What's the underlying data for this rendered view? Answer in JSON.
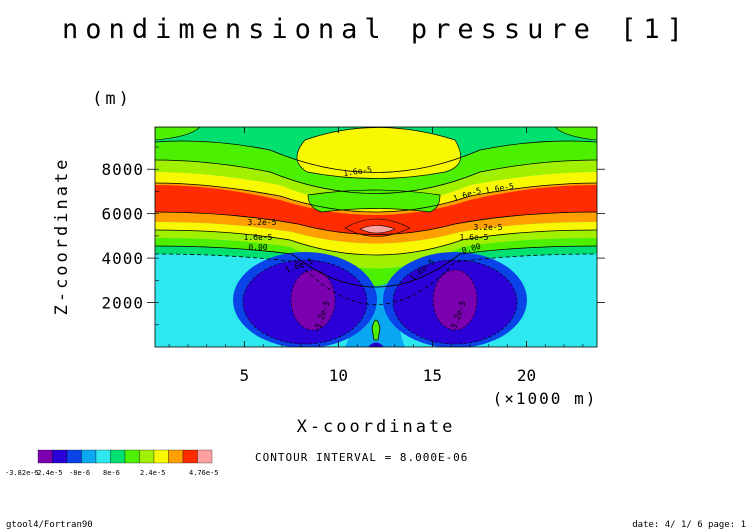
{
  "chart_data": {
    "type": "contour",
    "title": "nondimensional pressure [1]",
    "xlabel": "X-coordinate",
    "x_unit": "(×1000 m)",
    "ylabel": "Z-coordinate",
    "y_unit": "(m)",
    "xlim": [
      0.25,
      23.75
    ],
    "ylim": [
      0,
      9900
    ],
    "xticks": [
      5,
      10,
      15,
      20
    ],
    "yticks": [
      2000,
      4000,
      6000,
      8000
    ],
    "contour_interval_text": "CONTOUR INTERVAL = 8.000E-06",
    "contour_labels": [
      {
        "text": "1.6e-5"
      },
      {
        "text": "1.6e-5"
      },
      {
        "text": "1.6e-5"
      },
      {
        "text": "3.2e-5"
      },
      {
        "text": "3.2e-5"
      },
      {
        "text": "1.6e-5"
      },
      {
        "text": "1.6e-5"
      },
      {
        "text": "0.00"
      },
      {
        "text": "0.00"
      },
      {
        "text": "1.6e-5"
      },
      {
        "text": "1.6e-5"
      },
      {
        "text": "-3.2e-5"
      },
      {
        "text": "-3.2e-5"
      }
    ],
    "colorbar": {
      "colors": [
        "#7a00b0",
        "#2b00d8",
        "#0a44e8",
        "#0aa8f0",
        "#2ee8f0",
        "#00e070",
        "#4cf000",
        "#a0f000",
        "#f8f800",
        "#ffa000",
        "#ff2c00",
        "#ffa0a0"
      ],
      "labels": [
        "-3.82e-5",
        "-2.4e-5",
        "-8e-6",
        "8e-6",
        "2.4e-5",
        "4.76e-5"
      ]
    }
  },
  "footer": {
    "left": "gtool4/Fortran90",
    "right": "date:  4/ 1/ 6  page:  1"
  }
}
